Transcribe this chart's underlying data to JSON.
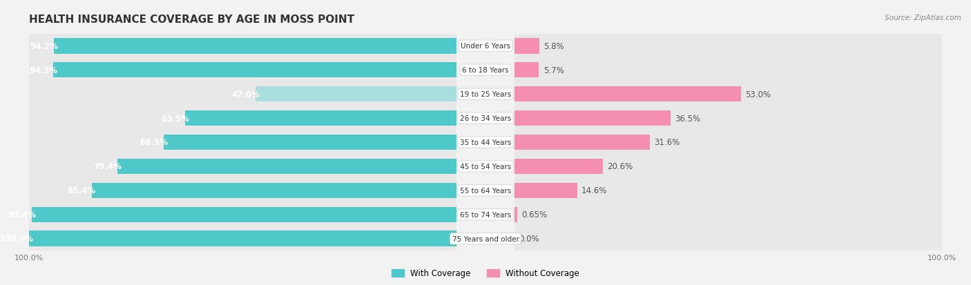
{
  "title": "HEALTH INSURANCE COVERAGE BY AGE IN MOSS POINT",
  "source": "Source: ZipAtlas.com",
  "categories": [
    "Under 6 Years",
    "6 to 18 Years",
    "19 to 25 Years",
    "26 to 34 Years",
    "35 to 44 Years",
    "45 to 54 Years",
    "55 to 64 Years",
    "65 to 74 Years",
    "75 Years and older"
  ],
  "with_coverage": [
    94.2,
    94.3,
    47.0,
    63.5,
    68.5,
    79.4,
    85.4,
    99.4,
    100.0
  ],
  "without_coverage": [
    5.8,
    5.7,
    53.0,
    36.5,
    31.6,
    20.6,
    14.6,
    0.65,
    0.0
  ],
  "color_with": "#4EC8C8",
  "color_without": "#F48FB1",
  "color_with_light": "#A8DEDE",
  "bg_color": "#f2f2f2",
  "row_bg_color": "#e8e8e8",
  "title_fontsize": 11,
  "label_fontsize": 8.5,
  "bar_height": 0.65,
  "legend_with": "With Coverage",
  "legend_without": "Without Coverage"
}
